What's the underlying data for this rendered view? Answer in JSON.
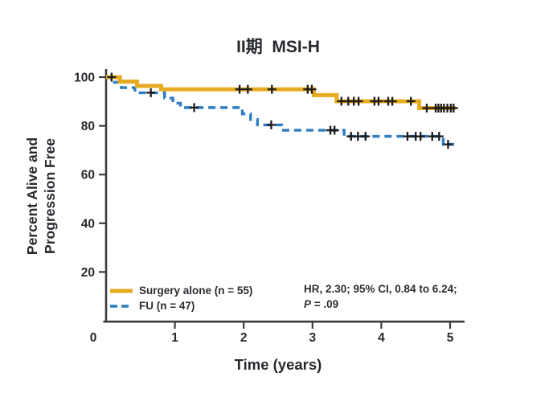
{
  "figure": {
    "title": "II期  MSI-H",
    "x_axis": {
      "label": "Time (years)",
      "ticks": [
        0,
        1,
        2,
        3,
        4,
        5
      ]
    },
    "y_axis": {
      "label_line1": "Percent Alive and",
      "label_line2": "Progression Free",
      "ticks": [
        20,
        40,
        60,
        80,
        100
      ]
    },
    "legend": [
      {
        "label": "Surgery alone (n = 55)"
      },
      {
        "label": "FU (n = 47)"
      }
    ],
    "annotation": {
      "line1": "HR, 2.30; 95% CI, 0.84 to 6.24;",
      "p_label": "P",
      "p_rest": " = .09"
    }
  },
  "chart_data": {
    "type": "line",
    "subtype": "kaplan-meier-step",
    "title": "II期 MSI-H",
    "xlabel": "Time (years)",
    "ylabel": "Percent Alive and Progression Free",
    "xlim": [
      0,
      5.5
    ],
    "ylim": [
      0,
      105
    ],
    "x_ticks": [
      0,
      1,
      2,
      3,
      4,
      5
    ],
    "y_ticks": [
      20,
      40,
      60,
      80,
      100
    ],
    "grid": false,
    "legend_position": "lower-left-inside",
    "annotations": [
      "HR, 2.30; 95% CI, 0.84 to 6.24;",
      "P = .09"
    ],
    "censor_color": "#1b1b1b",
    "axis_color": "#3a3d40",
    "series": [
      {
        "name": "FU (n = 47)",
        "color": "#2E7CC3",
        "line": "dashed",
        "end": 5.06,
        "steps": [
          [
            0,
            100
          ],
          [
            0.07,
            97.9
          ],
          [
            0.22,
            95.7
          ],
          [
            0.42,
            93.6
          ],
          [
            0.85,
            91.4
          ],
          [
            0.97,
            89.3
          ],
          [
            1.08,
            87.5
          ],
          [
            1.98,
            84.9
          ],
          [
            2.1,
            82.6
          ],
          [
            2.2,
            80.4
          ],
          [
            2.55,
            78.2
          ],
          [
            3.46,
            75.7
          ],
          [
            4.9,
            72.4
          ]
        ],
        "censors": [
          [
            0.65,
            93.6
          ],
          [
            1.28,
            87.5
          ],
          [
            2.4,
            80.4
          ],
          [
            3.26,
            78.2
          ],
          [
            3.32,
            78.2
          ],
          [
            3.56,
            75.7
          ],
          [
            3.66,
            75.7
          ],
          [
            3.77,
            75.7
          ],
          [
            4.38,
            75.7
          ],
          [
            4.5,
            75.7
          ],
          [
            4.57,
            75.7
          ],
          [
            4.74,
            75.7
          ],
          [
            4.84,
            75.7
          ],
          [
            4.97,
            72.4
          ]
        ]
      },
      {
        "name": "Surgery alone (n = 55)",
        "color": "#E7AB21",
        "line": "solid",
        "end": 5.08,
        "steps": [
          [
            0,
            100
          ],
          [
            0.2,
            98.2
          ],
          [
            0.45,
            96.4
          ],
          [
            0.8,
            95.0
          ],
          [
            3.02,
            92.6
          ],
          [
            3.35,
            90.1
          ],
          [
            4.55,
            87.3
          ]
        ],
        "censors": [
          [
            0.08,
            100
          ],
          [
            1.94,
            95.0
          ],
          [
            2.06,
            95.0
          ],
          [
            2.41,
            95.0
          ],
          [
            2.93,
            95.0
          ],
          [
            2.99,
            95.0
          ],
          [
            3.42,
            90.1
          ],
          [
            3.52,
            90.1
          ],
          [
            3.6,
            90.1
          ],
          [
            3.67,
            90.1
          ],
          [
            3.9,
            90.1
          ],
          [
            3.96,
            90.1
          ],
          [
            4.1,
            90.1
          ],
          [
            4.16,
            90.1
          ],
          [
            4.43,
            90.1
          ],
          [
            4.66,
            87.3
          ],
          [
            4.79,
            87.3
          ],
          [
            4.83,
            87.3
          ],
          [
            4.87,
            87.3
          ],
          [
            4.91,
            87.3
          ],
          [
            4.96,
            87.3
          ],
          [
            5.01,
            87.3
          ],
          [
            5.05,
            87.3
          ]
        ]
      }
    ]
  }
}
